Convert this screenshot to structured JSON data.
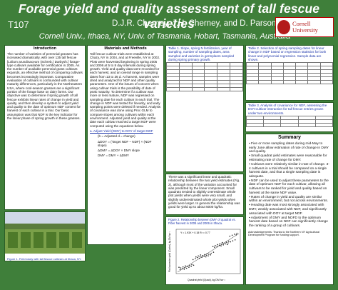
{
  "header": {
    "title": "Forage yield and quality assessment of tall fescue varieties",
    "poster_id": "T107",
    "authors": "D.J.R. Cherney, J.H. Cherney, and D. Parsons",
    "affiliations": "Cornell Univ., Ithaca, NY, Univ. of Tasmania, Hobart, Tasmania, Australia",
    "logo_text": "Cornell University"
  },
  "intro": {
    "heading": "Introduction",
    "text": "The number of varieties of perennial grasses has increased dramatically, with over 135 tall fescue [Lolium arundinaceum (Schreb.) Darbysh.] forage-type cultivars available for certification in 2005. As the number of available perennial grass cultivars expands, an effective method of comparing cultivars becomes increasingly important. Comparative evaluation of cultivars is confounded with cultivar maturity differences, particularly in the Northeastern USA, where cool-season grasses are a significant portion of the forage base on dairy farms. Our objective was to determine if spring growth of tall fescue exhibits linear rates of change in yield and quality, and then develop a system to adjust yield and quality to the date of optimum NDF content for harvest of each cultivar in a trial. Our basic assumption was that NDF is the key indicator for the linear phase of spring growth in these grasses."
  },
  "fig1": {
    "caption": "Figure 1. Field study with tall fescue cultivars at Ithaca, NY."
  },
  "methods": {
    "heading": "Materials and Methods",
    "text": "Tall fescue cultivar trials were established at Chazy, NY in 2004, and at Freeville, NY in 2002. Plots were harvested beginning in spring 2005 and 2006 at 5 to 8 day intervals during spring growth. Yield and quality data were recorded for each harvest, and an overall range in sampling dates from 13 to 36 d. At harvest, samples were dried and analyzed for NDF and other quality parameters. One of the issues of concern when using cultivar trials is the possibility of date of peak maturity. To determine if a cultivar was more or less mature, NDF was regressed on sampling date for each cultivar in each trial. The change in NDF was tested for linearity, and early sampling points were deleted if needed. Analysis of covariance was done using Proc GLM to compare slopes among cultivars within each environment. Adjusted yield and quality at the date each cultivar reached a target NDF were computed using the equations below.",
    "equations_ref": "a. Adjust Yield (DMY) to DOY of target NDF",
    "eq1": "(b = Adjusted d = change)",
    "eq2": "ΔDOY = (Target NDF – NDF) × (NDF slope)",
    "eq3": "ΔDMY = ΔDOY × DMY slope",
    "eq4": "DMY = DMY + ΔDMY"
  },
  "table1": {
    "caption": "Table 1. Slope, spring N fertilization, year of sampling, number of sampling dates, area sampled and varieties in germplasm sampled during spring primary growth."
  },
  "fig2": {
    "caption": "Figure 2. Relationship between DMY of quadrat vs. Fiber harvest in 2005 and 2006 in Ithaca."
  },
  "scatter": {
    "equation_label": "Y = 1.93X + 0.18  R² = 0.77",
    "xlabel": "Quadrat yield (Quad), kg DM ha⁻¹",
    "ylabel": "Plot harvester yield (Carter), kg DM ha⁻¹"
  },
  "results_text": "There was a significant linear and quadratic relationship between the two yield estimates (Fig. 2), although most of the variation accounted for was predicted by the linear component. Small quadrats tended to slightly overestimate whole plot yields when yields were very small, and slightly underestimated whole plot yields when yields were larger. In general the relationship was good for yield up to about 5000 kg/ha.",
  "table2": {
    "caption": "Table 2. Selection of spring sampling dates for linear change in NDF based on regression statistics for both linear and polynomial regression. Sample data are shown."
  },
  "table3": {
    "caption": "Table 3. Analysis of covariance for NDF, assessing the DOY:cultivar interaction for tall fescue entries grown under two environments."
  },
  "summary": {
    "heading": "Summary",
    "bullets": [
      "Five or more sampling dates during mid-May to early June allow estimation of rate of change in DMY and quality.",
      "Small quadrat yield estimates were reasonable for estimating rate of change for DMY.",
      "Cultivars were relatively similar in rate of change. 3-4 cultivars in a trial should be compared on a single harvest date, and that a single sampling date is adequate.",
      "NDF can be used to adjust these parameters to the date of optimum NDF for each cultivar, allowing all cultivars to be ranked for yield and quality based on harvest at the same NDF value.",
      "Rates of change in yield and quality are similar within an environment, but not across environments.",
      "Heading date was most strongly associated with DMY, weakly associated with NDF, and significantly associated with DOY at target NDF.",
      "Adjustment of DMY and NDFD to the optimum harvest date based on NDF can significantly change the ranking of a group of cultivars."
    ],
    "ack": "Acknowledgements: Thanks to the Northern NY Agricultural Development Program for funding support."
  }
}
